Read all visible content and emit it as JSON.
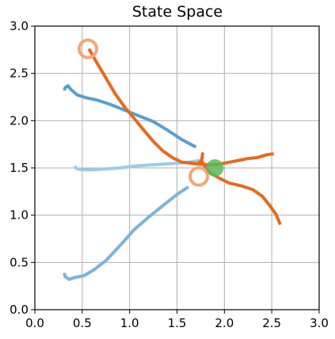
{
  "chart_data": {
    "type": "line",
    "title": "State Space",
    "xlabel": "",
    "ylabel": "",
    "xlim": [
      0.0,
      3.0
    ],
    "ylim": [
      0.0,
      3.0
    ],
    "x_ticks": [
      "0.0",
      "0.5",
      "1.0",
      "1.5",
      "2.0",
      "2.5",
      "3.0"
    ],
    "y_ticks": [
      "0.0",
      "0.5",
      "1.0",
      "1.5",
      "2.0",
      "2.5",
      "3.0"
    ],
    "grid": true,
    "legend": "none",
    "series": [
      {
        "color": "#5a9fd0",
        "points": [
          [
            0.31,
            2.32
          ],
          [
            0.32,
            2.35
          ],
          [
            0.35,
            2.37
          ],
          [
            0.38,
            2.33
          ],
          [
            0.45,
            2.27
          ],
          [
            0.55,
            2.24
          ],
          [
            0.65,
            2.22
          ],
          [
            0.8,
            2.17
          ],
          [
            0.95,
            2.11
          ],
          [
            1.1,
            2.05
          ],
          [
            1.25,
            1.99
          ],
          [
            1.4,
            1.9
          ],
          [
            1.55,
            1.8
          ],
          [
            1.7,
            1.72
          ]
        ]
      },
      {
        "color": "#9ccbe6",
        "points": [
          [
            0.42,
            1.52
          ],
          [
            0.44,
            1.49
          ],
          [
            0.5,
            1.48
          ],
          [
            0.6,
            1.48
          ],
          [
            0.75,
            1.49
          ],
          [
            0.9,
            1.5
          ],
          [
            1.05,
            1.52
          ],
          [
            1.2,
            1.53
          ],
          [
            1.35,
            1.54
          ],
          [
            1.5,
            1.55
          ],
          [
            1.62,
            1.56
          ],
          [
            1.75,
            1.58
          ]
        ]
      },
      {
        "color": "#79b5dc",
        "points": [
          [
            0.31,
            0.39
          ],
          [
            0.32,
            0.35
          ],
          [
            0.36,
            0.32
          ],
          [
            0.42,
            0.34
          ],
          [
            0.52,
            0.36
          ],
          [
            0.62,
            0.42
          ],
          [
            0.75,
            0.52
          ],
          [
            0.9,
            0.68
          ],
          [
            1.05,
            0.85
          ],
          [
            1.2,
            0.98
          ],
          [
            1.35,
            1.1
          ],
          [
            1.5,
            1.22
          ],
          [
            1.62,
            1.3
          ]
        ]
      },
      {
        "color": "#e8691e",
        "points": [
          [
            0.57,
            2.76
          ],
          [
            0.65,
            2.62
          ],
          [
            0.75,
            2.45
          ],
          [
            0.85,
            2.28
          ],
          [
            0.95,
            2.14
          ],
          [
            1.05,
            2.02
          ],
          [
            1.15,
            1.9
          ],
          [
            1.25,
            1.78
          ],
          [
            1.35,
            1.68
          ],
          [
            1.45,
            1.61
          ],
          [
            1.55,
            1.56
          ],
          [
            1.65,
            1.55
          ],
          [
            1.72,
            1.54
          ],
          [
            1.76,
            1.58
          ],
          [
            1.77,
            1.65
          ],
          [
            1.76,
            1.58
          ],
          [
            1.8,
            1.5
          ],
          [
            1.86,
            1.44
          ],
          [
            1.95,
            1.39
          ],
          [
            2.05,
            1.34
          ],
          [
            2.18,
            1.31
          ],
          [
            2.3,
            1.27
          ],
          [
            2.4,
            1.2
          ],
          [
            2.48,
            1.1
          ],
          [
            2.55,
            1.0
          ],
          [
            2.59,
            0.9
          ]
        ]
      },
      {
        "color": "#e8691e",
        "points": [
          [
            1.65,
            1.55
          ],
          [
            1.75,
            1.54
          ],
          [
            1.85,
            1.53
          ],
          [
            1.95,
            1.54
          ],
          [
            2.05,
            1.56
          ],
          [
            2.15,
            1.58
          ],
          [
            2.25,
            1.6
          ],
          [
            2.35,
            1.61
          ],
          [
            2.45,
            1.64
          ],
          [
            2.52,
            1.65
          ]
        ]
      }
    ],
    "markers": [
      {
        "x": 0.56,
        "y": 2.76,
        "kind": "start",
        "color": "#f4a57b"
      },
      {
        "x": 1.73,
        "y": 1.41,
        "kind": "start",
        "color": "#f4a57b"
      },
      {
        "x": 1.9,
        "y": 1.5,
        "kind": "goal",
        "color": "#59b859"
      }
    ]
  }
}
